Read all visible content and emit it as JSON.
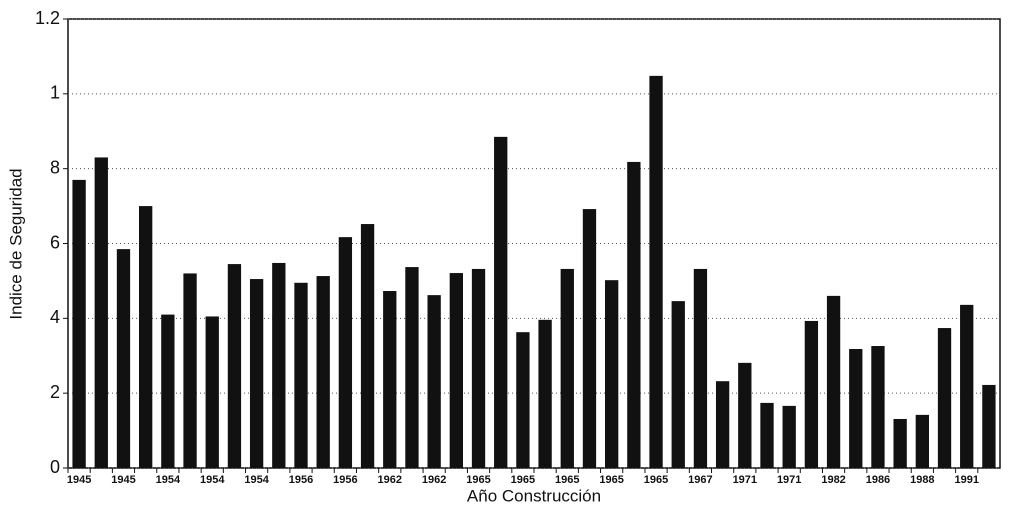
{
  "chart_data": {
    "type": "bar",
    "x_label": "Año Construcción",
    "y_label": "Indice de Seguridad",
    "categories": [
      "1945",
      null,
      "1945",
      null,
      "1954",
      null,
      "1954",
      null,
      "1954",
      null,
      "1956",
      null,
      "1956",
      null,
      "1962",
      null,
      "1962",
      null,
      "1965",
      null,
      "1965",
      null,
      "1965",
      null,
      "1965",
      null,
      "1965",
      null,
      "1967",
      null,
      "1971",
      null,
      "1971",
      null,
      "1982",
      null,
      "1986",
      null,
      "1988",
      null,
      "1991",
      null
    ],
    "values": [
      0.77,
      0.83,
      0.585,
      0.7,
      0.41,
      0.52,
      0.405,
      0.545,
      0.505,
      0.548,
      0.495,
      0.513,
      0.617,
      0.652,
      0.473,
      0.537,
      0.462,
      0.521,
      0.532,
      0.885,
      0.363,
      0.396,
      0.532,
      0.692,
      0.502,
      0.818,
      1.048,
      0.446,
      0.532,
      0.232,
      0.281,
      0.174,
      0.166,
      0.393,
      0.46,
      0.318,
      0.326,
      0.131,
      0.142,
      0.374,
      0.436,
      0.222
    ],
    "color": "#111111",
    "ylim": [
      0,
      1.2
    ],
    "yticks": [
      0,
      {
        "value": 0.2,
        "label": "2"
      },
      {
        "value": 0.4,
        "label": "4"
      },
      {
        "value": 0.6,
        "label": "6"
      },
      {
        "value": 0.8,
        "label": "8"
      },
      1,
      1.2
    ],
    "grid": true
  }
}
